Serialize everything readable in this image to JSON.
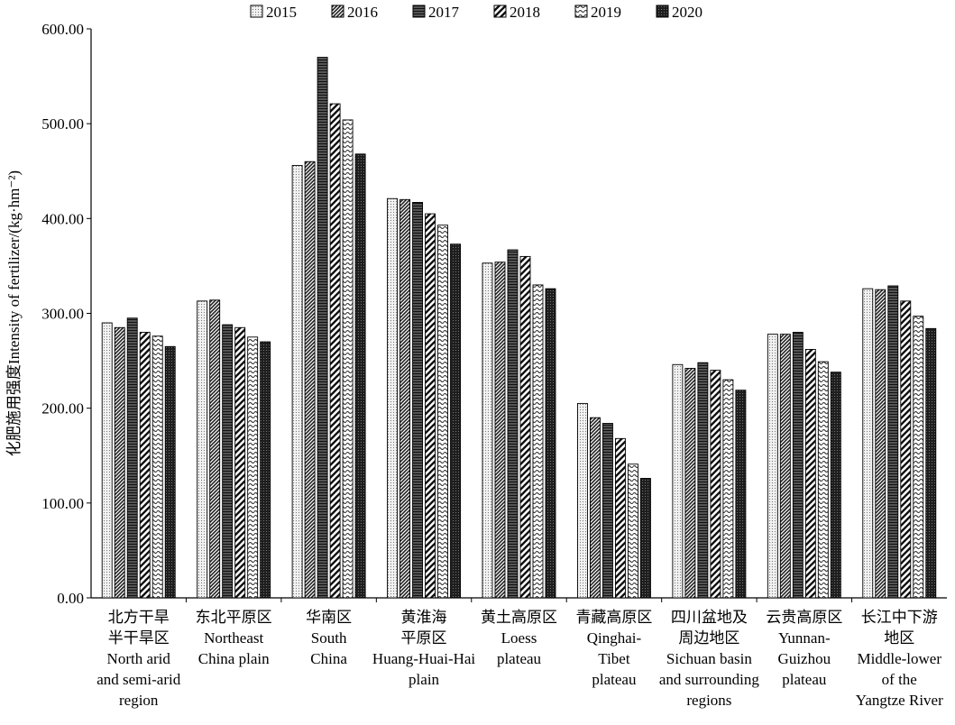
{
  "chart_data": {
    "type": "bar",
    "title": "",
    "ylabel": "化肥施用强度Intensity of fertilizer/(kg·hm⁻²)",
    "xlabel": "",
    "ylim": [
      0,
      600
    ],
    "yticks": [
      "0.00",
      "100.00",
      "200.00",
      "300.00",
      "400.00",
      "500.00",
      "600.00"
    ],
    "legend_position": "top",
    "grid": false,
    "categories": [
      [
        "北方干旱",
        "半干旱区",
        "North arid",
        "and semi-arid",
        "region"
      ],
      [
        "东北平原区",
        "Northeast",
        "China plain"
      ],
      [
        "华南区",
        "South",
        "China"
      ],
      [
        "黄淮海",
        "平原区",
        "Huang-Huai-Hai",
        "plain"
      ],
      [
        "黄土高原区",
        "Loess",
        "plateau"
      ],
      [
        "青藏高原区",
        "Qinghai-",
        "Tibet",
        "plateau"
      ],
      [
        "四川盆地及",
        "周边地区",
        "Sichuan basin",
        "and surrounding",
        "regions"
      ],
      [
        "云贵高原区",
        "Yunnan-",
        "Guizhou",
        "plateau"
      ],
      [
        "长江中下游",
        "地区",
        "Middle-lower",
        "of the",
        "Yangtze River"
      ]
    ],
    "series": [
      {
        "name": "2015",
        "pattern": "dots-light",
        "values": [
          290,
          313,
          456,
          421,
          353,
          205,
          246,
          278,
          326
        ]
      },
      {
        "name": "2016",
        "pattern": "diag-dense",
        "values": [
          285,
          314,
          460,
          420,
          354,
          190,
          242,
          278,
          325
        ]
      },
      {
        "name": "2017",
        "pattern": "horiz-dark",
        "values": [
          295,
          288,
          570,
          417,
          367,
          184,
          248,
          280,
          329
        ]
      },
      {
        "name": "2018",
        "pattern": "diag-wide",
        "values": [
          280,
          285,
          521,
          405,
          360,
          168,
          240,
          262,
          313
        ]
      },
      {
        "name": "2019",
        "pattern": "wavy",
        "values": [
          276,
          275,
          504,
          393,
          330,
          141,
          230,
          249,
          297
        ]
      },
      {
        "name": "2020",
        "pattern": "dots-dark",
        "values": [
          265,
          270,
          468,
          373,
          326,
          126,
          219,
          238,
          284
        ]
      }
    ]
  }
}
